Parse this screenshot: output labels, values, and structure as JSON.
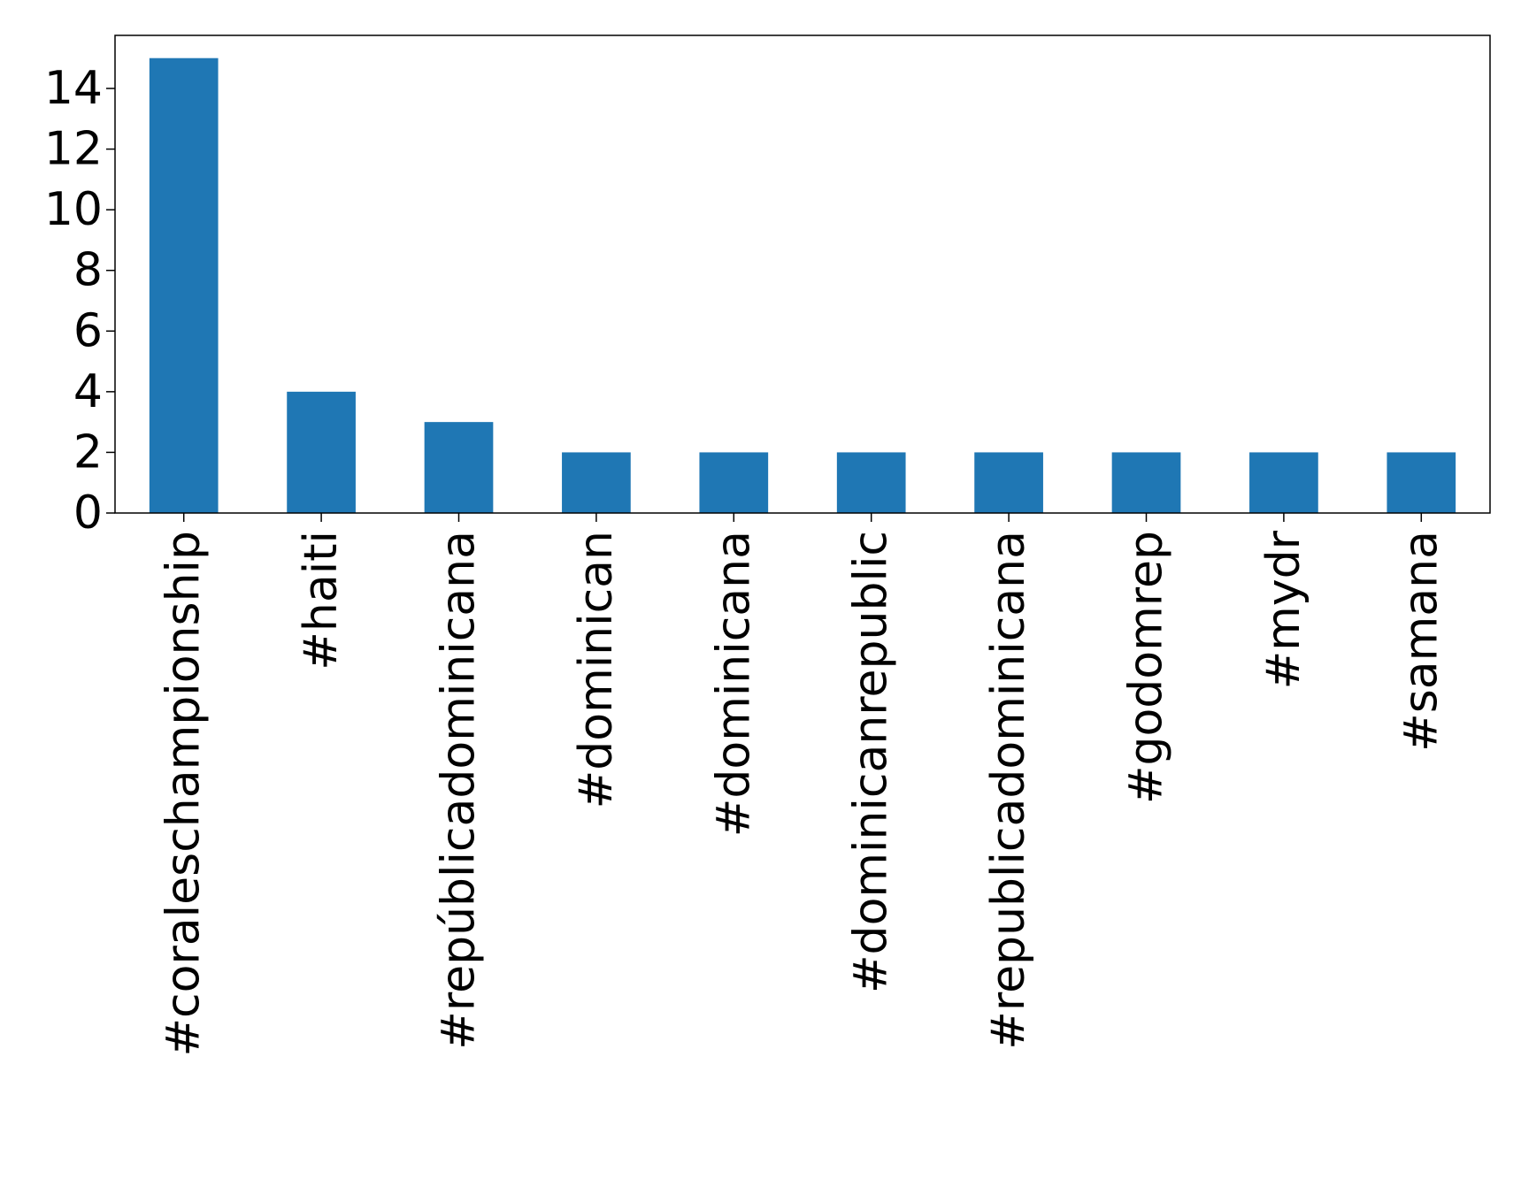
{
  "chart_data": {
    "type": "bar",
    "title": "",
    "xlabel": "",
    "ylabel": "",
    "categories": [
      "#coraleschampionship",
      "#haiti",
      "#repúblicadominicana",
      "#dominican",
      "#dominicana",
      "#dominicanrepublic",
      "#republicadominicana",
      "#godomrep",
      "#mydr",
      "#samana"
    ],
    "values": [
      15,
      4,
      3,
      2,
      2,
      2,
      2,
      2,
      2,
      2
    ],
    "ylim": [
      0,
      15.75
    ],
    "yticks": [
      "0",
      "2",
      "4",
      "6",
      "8",
      "10",
      "12",
      "14"
    ],
    "bar_color": "#1f77b4",
    "grid": false,
    "legend": "none"
  }
}
